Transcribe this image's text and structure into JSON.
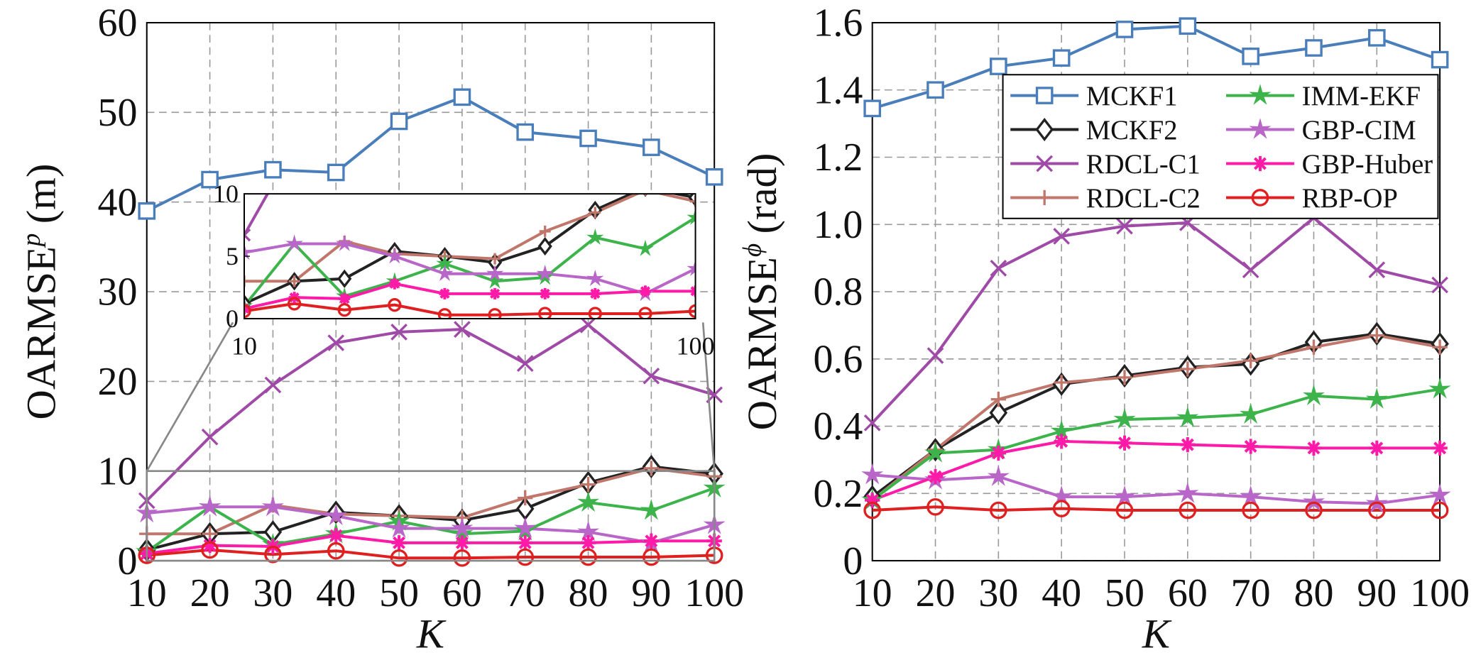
{
  "chart_data": [
    {
      "type": "line",
      "x_label": "K",
      "y_label": "OARMSE",
      "y_label_sup": "p",
      "y_label_unit": "(m)",
      "x": [
        10,
        20,
        30,
        40,
        50,
        60,
        70,
        80,
        90,
        100
      ],
      "xlim": [
        10,
        100
      ],
      "xticks": [
        10,
        20,
        30,
        40,
        50,
        60,
        70,
        80,
        90,
        100
      ],
      "ylim": [
        0,
        60
      ],
      "yticks": [
        0,
        10,
        20,
        30,
        40,
        50,
        60
      ],
      "grid": true,
      "legend": false,
      "series": [
        {
          "color": "#4a7ebb",
          "marker": "square",
          "values": [
            39,
            42.5,
            43.6,
            43.3,
            49,
            51.7,
            47.8,
            47.1,
            46.1,
            42.8
          ]
        },
        {
          "color": "#222222",
          "marker": "diamond",
          "values": [
            1.2,
            3,
            3.2,
            5.4,
            5,
            4.5,
            5.8,
            8.7,
            10.5,
            9.7
          ]
        },
        {
          "color": "#a04aa8",
          "marker": "x",
          "values": [
            6.7,
            13.8,
            19.6,
            24.3,
            25.5,
            25.8,
            22,
            26.3,
            20.6,
            18.5
          ]
        },
        {
          "color": "#c0766a",
          "marker": "plus",
          "values": [
            3,
            3,
            6.2,
            5.2,
            5,
            4.8,
            7,
            8.5,
            10.3,
            9.4
          ]
        },
        {
          "color": "#3cb44b",
          "marker": "star",
          "values": [
            1,
            6,
            1.8,
            3,
            4.4,
            3,
            3.3,
            6.5,
            5.6,
            8.1
          ]
        },
        {
          "color": "#b866c8",
          "marker": "star",
          "values": [
            5.3,
            6,
            6,
            5,
            3.6,
            3.6,
            3.6,
            3.2,
            2,
            4
          ]
        },
        {
          "color": "#ff1aa8",
          "marker": "asterisk",
          "values": [
            0.8,
            1.7,
            1.6,
            2.8,
            2,
            2,
            2,
            2,
            2.2,
            2.2
          ]
        },
        {
          "color": "#e02020",
          "marker": "circle",
          "values": [
            0.6,
            1.2,
            0.7,
            1.1,
            0.3,
            0.3,
            0.4,
            0.4,
            0.4,
            0.6
          ]
        }
      ],
      "inset": {
        "xlim": [
          10,
          100
        ],
        "xticks": [
          10,
          100
        ],
        "ylim": [
          0,
          10
        ],
        "yticks": [
          0,
          5,
          10
        ]
      }
    },
    {
      "type": "line",
      "x_label": "K",
      "y_label": "OARMSE",
      "y_label_sup": "ϕ",
      "y_label_unit": "(rad)",
      "x": [
        10,
        20,
        30,
        40,
        50,
        60,
        70,
        80,
        90,
        100
      ],
      "xlim": [
        10,
        100
      ],
      "xticks": [
        10,
        20,
        30,
        40,
        50,
        60,
        70,
        80,
        90,
        100
      ],
      "ylim": [
        0,
        1.6
      ],
      "yticks": [
        0,
        0.2,
        0.4,
        0.6,
        0.8,
        {
          "value": 1,
          "label": "1.0"
        },
        1.2,
        1.4,
        1.6
      ],
      "grid": true,
      "legend": "upper right",
      "series": [
        {
          "name": "MCKF1",
          "color": "#4a7ebb",
          "marker": "square",
          "values": [
            1.345,
            1.4,
            1.47,
            1.495,
            1.58,
            1.59,
            1.5,
            1.525,
            1.555,
            1.49
          ]
        },
        {
          "name": "MCKF2",
          "color": "#222222",
          "marker": "diamond",
          "values": [
            0.19,
            0.33,
            0.44,
            0.525,
            0.55,
            0.575,
            0.585,
            0.65,
            0.675,
            0.645
          ]
        },
        {
          "name": "RDCL-C1",
          "color": "#a04aa8",
          "marker": "x",
          "values": [
            0.41,
            0.61,
            0.87,
            0.965,
            0.995,
            1.005,
            0.865,
            1.02,
            0.865,
            0.82
          ]
        },
        {
          "name": "RDCL-C2",
          "color": "#c0766a",
          "marker": "plus",
          "values": [
            0.18,
            0.33,
            0.48,
            0.53,
            0.545,
            0.57,
            0.595,
            0.635,
            0.67,
            0.635
          ]
        },
        {
          "name": "IMM-EKF",
          "color": "#3cb44b",
          "marker": "star",
          "values": [
            0.18,
            0.32,
            0.33,
            0.385,
            0.42,
            0.425,
            0.435,
            0.49,
            0.48,
            0.51
          ]
        },
        {
          "name": "GBP-CIM",
          "color": "#b866c8",
          "marker": "star",
          "values": [
            0.255,
            0.24,
            0.25,
            0.19,
            0.19,
            0.2,
            0.19,
            0.175,
            0.17,
            0.195
          ]
        },
        {
          "name": "GBP-Huber",
          "color": "#ff1aa8",
          "marker": "asterisk",
          "values": [
            0.18,
            0.25,
            0.32,
            0.355,
            0.35,
            0.345,
            0.34,
            0.335,
            0.335,
            0.335
          ]
        },
        {
          "name": "RBP-OP",
          "color": "#e02020",
          "marker": "circle",
          "values": [
            0.15,
            0.16,
            0.15,
            0.155,
            0.15,
            0.15,
            0.15,
            0.15,
            0.15,
            0.15
          ]
        }
      ]
    }
  ]
}
